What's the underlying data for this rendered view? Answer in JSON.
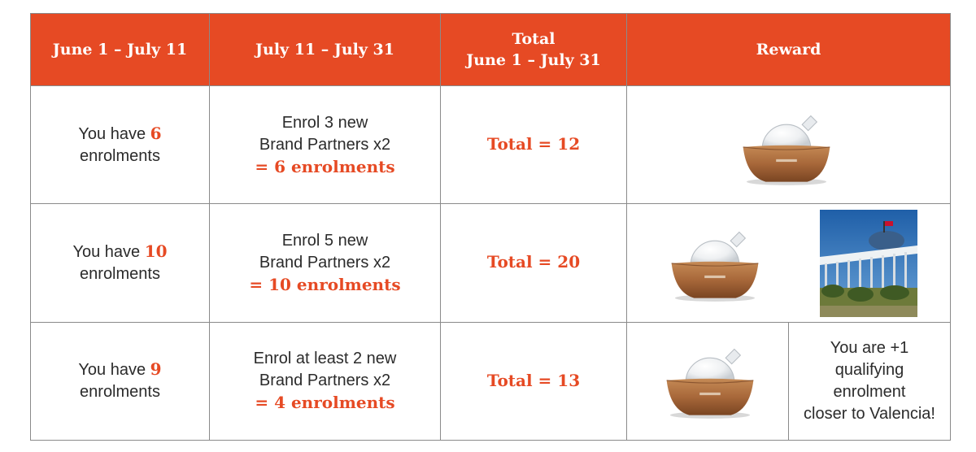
{
  "header": {
    "col1": "June 1 – July 11",
    "col2": "July 11 – July 31",
    "col3_line1": "Total",
    "col3_line2": "June 1 – July 31",
    "col4": "Reward"
  },
  "rows": [
    {
      "have_prefix": "You have ",
      "have_count": "6",
      "have_suffix": "enrolments",
      "enrol_line1": "Enrol 3 new",
      "enrol_line2": "Brand Partners x2",
      "enrol_result": "= 6 enrolments",
      "total": "Total = 12",
      "reward_icons": [
        "diffuser-image"
      ]
    },
    {
      "have_prefix": "You have ",
      "have_count": "10",
      "have_suffix": "enrolments",
      "enrol_line1": "Enrol 5 new",
      "enrol_line2": "Brand Partners x2",
      "enrol_result": "= 10 enrolments",
      "total": "Total = 20",
      "reward_icons": [
        "diffuser-image",
        "valencia-building-photo"
      ]
    },
    {
      "have_prefix": "You have ",
      "have_count": "9",
      "have_suffix": "enrolments",
      "enrol_line1": "Enrol at least 2 new",
      "enrol_line2": "Brand Partners x2",
      "enrol_result": "= 4 enrolments",
      "total": "Total = 13",
      "reward_icons": [
        "diffuser-image"
      ],
      "reward_note_lines": [
        "You are +1",
        "qualifying",
        "enrolment",
        "closer to Valencia!"
      ]
    }
  ],
  "colors": {
    "accent": "#e64a24",
    "border": "#8a8a8a",
    "text": "#2b2b2b",
    "wood": "#a8683a"
  }
}
